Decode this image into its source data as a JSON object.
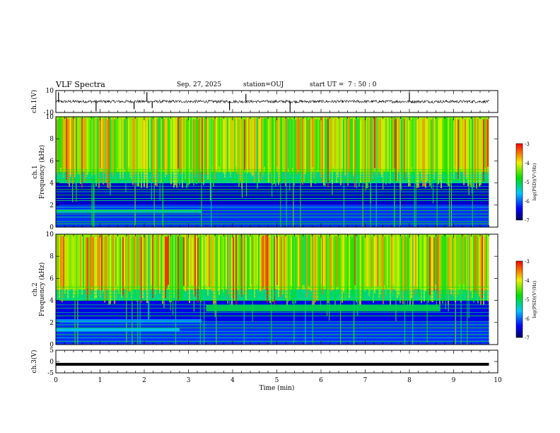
{
  "header": {
    "title": "VLF Spectra",
    "date": "Sep. 27, 2025",
    "station": "station=OUJ",
    "start_ut": "start UT =  7 : 50 : 0"
  },
  "colors": {
    "dark_navy": "#000060",
    "blue": "#0000ff",
    "cyan": "#00c8ff",
    "green": "#00e000",
    "yellow": "#f0f000",
    "red": "#ff0000",
    "line": "#000000"
  },
  "chart_data": [
    {
      "type": "line",
      "name": "ch1-waveform",
      "ylabel": "ch.1(V)",
      "ylim": [
        -10,
        10
      ],
      "yticks": [
        "10",
        "-10"
      ],
      "x": [
        0.06,
        0.91,
        1.77,
        2.06,
        2.18,
        3.93,
        4.3,
        5.3,
        8.0
      ],
      "y": [
        8.5,
        -9.0,
        -7.0,
        8.5,
        -6.0,
        -8.0,
        7.0,
        -9.5,
        8.0
      ],
      "baseline": 0,
      "note_values": "spike times (min) and amplitudes (V) on near-zero noisy baseline"
    },
    {
      "type": "heatmap",
      "name": "ch1-spectrogram",
      "ylabel": "ch.1\nFrequency (kHz)",
      "xlim": [
        0,
        10
      ],
      "ylim": [
        0,
        10
      ],
      "yticks": [
        "0",
        "2",
        "4",
        "6",
        "8",
        "10"
      ],
      "colorbar": {
        "label": "log(PSD)(V²/Hz)",
        "range": [
          -7,
          -3
        ],
        "ticks": [
          "-3",
          "-4",
          "-5",
          "-6",
          "-7"
        ]
      },
      "horizontal_lines_khz": [
        0.3,
        0.5,
        0.9,
        1.2,
        1.5,
        1.8,
        2.4,
        2.6,
        2.9,
        3.2,
        3.4,
        3.7,
        4.0,
        4.3,
        4.5,
        4.7,
        5.0,
        5.2
      ],
      "bands": [
        {
          "fmin": 5.0,
          "fmax": 10.0,
          "level": -4.3
        },
        {
          "fmin": 4.0,
          "fmax": 5.0,
          "level": -5.2
        },
        {
          "fmin": 2.0,
          "fmax": 4.0,
          "level": -6.6
        },
        {
          "fmin": 0.0,
          "fmax": 2.0,
          "level": -6.2
        }
      ],
      "features": [
        {
          "kind": "band",
          "fmin": 1.3,
          "fmax": 1.6,
          "tstart": 0.0,
          "tend": 3.3,
          "level": -5.3
        }
      ]
    },
    {
      "type": "heatmap",
      "name": "ch2-spectrogram",
      "ylabel": "ch.2\nFrequency (kHz)",
      "xlim": [
        0,
        10
      ],
      "ylim": [
        0,
        10
      ],
      "yticks": [
        "0",
        "2",
        "4",
        "6",
        "8",
        "10"
      ],
      "colorbar": {
        "label": "log(PSD)(V²/Hz)",
        "range": [
          -7,
          -3
        ],
        "ticks": [
          "-3",
          "-4",
          "-5",
          "-6",
          "-7"
        ]
      },
      "horizontal_lines_khz": [
        0.3,
        0.6,
        0.9,
        1.2,
        1.5,
        1.8,
        2.1,
        2.6,
        2.9,
        3.3,
        3.6,
        4.0,
        4.2,
        4.5,
        4.8,
        5.2
      ],
      "bands": [
        {
          "fmin": 5.0,
          "fmax": 10.0,
          "level": -4.3
        },
        {
          "fmin": 4.0,
          "fmax": 5.0,
          "level": -5.2
        },
        {
          "fmin": 2.0,
          "fmax": 4.0,
          "level": -6.5
        },
        {
          "fmin": 0.0,
          "fmax": 2.0,
          "level": -6.2
        }
      ],
      "features": [
        {
          "kind": "band",
          "fmin": 3.0,
          "fmax": 3.6,
          "tstart": 3.4,
          "tend": 8.7,
          "level": -5.0
        },
        {
          "kind": "band",
          "fmin": 1.2,
          "fmax": 1.5,
          "tstart": 0.0,
          "tend": 2.8,
          "level": -5.6
        },
        {
          "kind": "band",
          "fmin": 2.0,
          "fmax": 2.3,
          "tstart": 0.0,
          "tend": 3.3,
          "level": -5.8
        }
      ]
    },
    {
      "type": "line",
      "name": "ch3-waveform",
      "ylabel": "ch.3(V)",
      "ylim": [
        -5,
        5
      ],
      "yticks": [
        "5",
        "0",
        "-5"
      ],
      "x": [
        0,
        9.8
      ],
      "y": [
        -1.2,
        -1.2
      ]
    }
  ],
  "xaxis": {
    "label": "Time (min)",
    "ticks": [
      "0",
      "1",
      "2",
      "3",
      "4",
      "5",
      "6",
      "7",
      "8",
      "9",
      "10"
    ],
    "range": [
      0,
      10
    ]
  }
}
